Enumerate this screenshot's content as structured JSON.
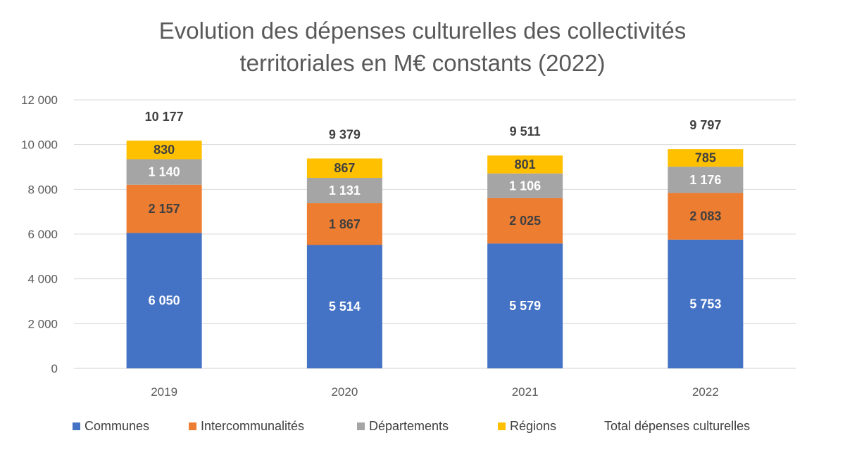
{
  "chart_data": {
    "type": "bar",
    "stacked": true,
    "title_line1": "Evolution des dépenses culturelles des collectivités",
    "title_line2": "territoriales en M€ constants (2022)",
    "categories": [
      "2019",
      "2020",
      "2021",
      "2022"
    ],
    "ylim": [
      0,
      12000
    ],
    "yticks": [
      0,
      2000,
      4000,
      6000,
      8000,
      10000,
      12000
    ],
    "ytick_labels": [
      "0",
      "2 000",
      "4 000",
      "6 000",
      "8 000",
      "10 000",
      "12 000"
    ],
    "grid": true,
    "legend_position": "bottom",
    "series": [
      {
        "name": "Communes",
        "color": "#4472C4",
        "label_color": "#FFFFFF",
        "values": [
          6050,
          5514,
          5579,
          5753
        ],
        "labels": [
          "6 050",
          "5 514",
          "5 579",
          "5 753"
        ]
      },
      {
        "name": "Intercommunalités",
        "color": "#ED7D31",
        "label_color": "#404040",
        "values": [
          2157,
          1867,
          2025,
          2083
        ],
        "labels": [
          "2 157",
          "1 867",
          "2 025",
          "2 083"
        ]
      },
      {
        "name": "Départements",
        "color": "#A5A5A5",
        "label_color": "#FFFFFF",
        "values": [
          1140,
          1131,
          1106,
          1176
        ],
        "labels": [
          "1 140",
          "1 131",
          "1 106",
          "1 176"
        ]
      },
      {
        "name": "Régions",
        "color": "#FFC000",
        "label_color": "#404040",
        "values": [
          830,
          867,
          801,
          785
        ],
        "labels": [
          "830",
          "867",
          "801",
          "785"
        ]
      }
    ],
    "totals": {
      "name": "Total dépenses culturelles",
      "values": [
        10177,
        9379,
        9511,
        9797
      ],
      "labels": [
        "10 177",
        "9 379",
        "9 511",
        "9 797"
      ]
    }
  }
}
